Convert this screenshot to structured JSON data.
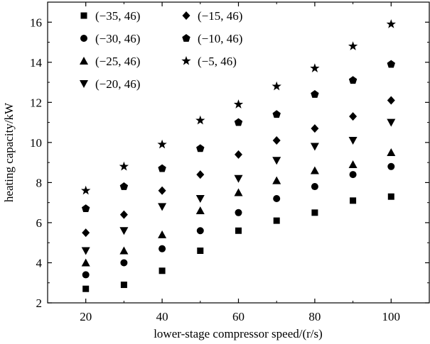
{
  "chart_data": {
    "type": "scatter",
    "title": "",
    "xlabel": "lower-stage compressor speed/(r/s)",
    "ylabel": "heating capacity/kW",
    "xlim": [
      10,
      110
    ],
    "ylim": [
      2,
      17
    ],
    "xticks": [
      20,
      40,
      60,
      80,
      100
    ],
    "yticks": [
      2,
      4,
      6,
      8,
      10,
      12,
      14,
      16
    ],
    "grid": false,
    "legend_position": "top-left",
    "x": [
      20,
      30,
      40,
      50,
      60,
      70,
      80,
      90,
      100
    ],
    "series": [
      {
        "name": "(−35, 46)",
        "marker": "square",
        "values": [
          2.7,
          2.9,
          3.6,
          4.6,
          5.6,
          6.1,
          6.5,
          7.1,
          7.3
        ]
      },
      {
        "name": "(−30, 46)",
        "marker": "circle",
        "values": [
          3.4,
          4.0,
          4.7,
          5.6,
          6.5,
          7.2,
          7.8,
          8.4,
          8.8
        ]
      },
      {
        "name": "(−25, 46)",
        "marker": "triangle-up",
        "values": [
          4.0,
          4.6,
          5.4,
          6.6,
          7.5,
          8.1,
          8.6,
          8.9,
          9.5
        ]
      },
      {
        "name": "(−20, 46)",
        "marker": "triangle-down",
        "values": [
          4.6,
          5.6,
          6.8,
          7.2,
          8.2,
          9.1,
          9.8,
          10.1,
          11.0
        ]
      },
      {
        "name": "(−15, 46)",
        "marker": "diamond",
        "values": [
          5.5,
          6.4,
          7.6,
          8.4,
          9.4,
          10.1,
          10.7,
          11.3,
          12.1
        ]
      },
      {
        "name": "(−10, 46)",
        "marker": "pentagon",
        "values": [
          6.7,
          7.8,
          8.7,
          9.7,
          11.0,
          11.4,
          12.4,
          13.1,
          13.9
        ]
      },
      {
        "name": "(−5, 46)",
        "marker": "star",
        "values": [
          7.6,
          8.8,
          9.9,
          11.1,
          11.9,
          12.8,
          13.7,
          14.8,
          15.9
        ]
      }
    ]
  }
}
